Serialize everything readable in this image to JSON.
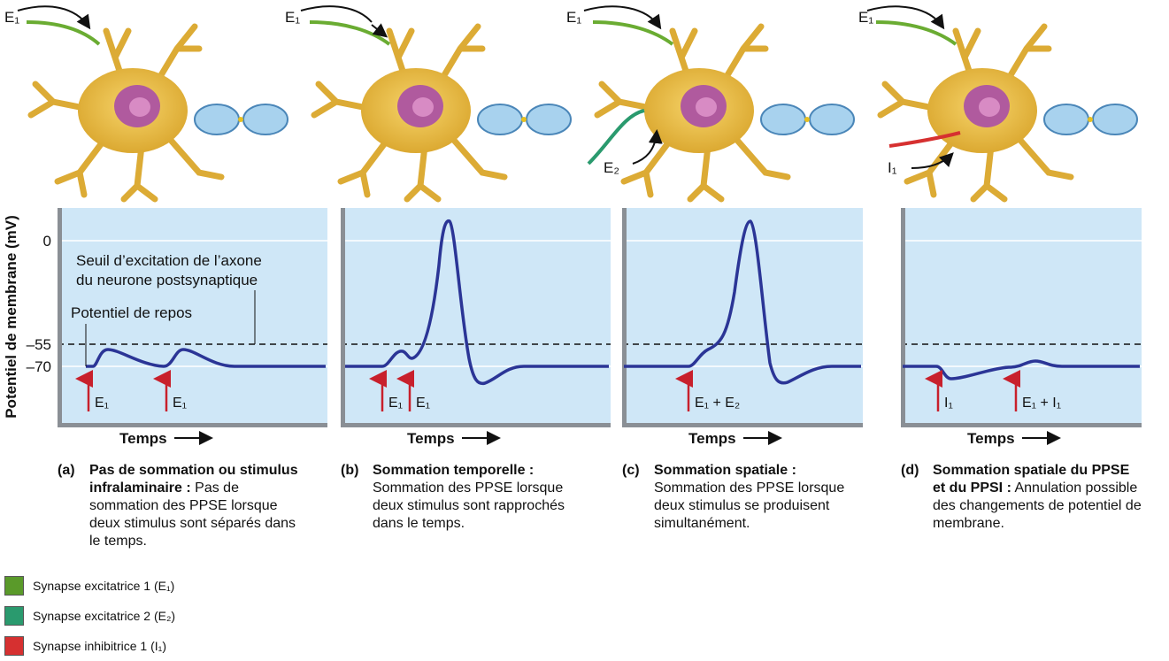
{
  "y_axis_label": "Potentiel de membrane (mV)",
  "y_ticks": [
    "0",
    "–55",
    "–70"
  ],
  "threshold_label": [
    "Seuil d’excitation de l’axone",
    "du neurone postsynaptique"
  ],
  "resting_label": "Potentiel de repos",
  "panels": [
    {
      "input_labels": [
        "E₁"
      ],
      "arrow_labels": [
        "E₁",
        "E₁"
      ],
      "x_label": "Temps",
      "caption": {
        "letter": "(a)",
        "title": "Pas de sommation ou stimulus infralaminaire :",
        "text": "Pas de sommation des PPSE lorsque deux stimulus sont séparés dans le temps."
      }
    },
    {
      "input_labels": [
        "E₁"
      ],
      "arrow_labels": [
        "E₁",
        "E₁"
      ],
      "x_label": "Temps",
      "caption": {
        "letter": "(b)",
        "title": "Sommation temporelle :",
        "text": "Sommation des PPSE lorsque deux stimulus sont rapprochés dans le temps."
      }
    },
    {
      "input_labels": [
        "E₁",
        "E₂"
      ],
      "arrow_labels": [
        "E₁ + E₂"
      ],
      "x_label": "Temps",
      "caption": {
        "letter": "(c)",
        "title": "Sommation spatiale :",
        "text": "Sommation des PPSE lorsque deux stimulus se produisent simultanément."
      }
    },
    {
      "input_labels": [
        "E₁",
        "I₁"
      ],
      "arrow_labels": [
        "I₁",
        "E₁ + I₁"
      ],
      "x_label": "Temps",
      "caption": {
        "letter": "(d)",
        "title": "Sommation spatiale du PPSE et du PPSI :",
        "text": "Annulation possible des changements de potentiel de membrane."
      }
    }
  ],
  "legend": [
    {
      "label": "Synapse excitatrice 1 (E₁)",
      "color": "#5a9a2a"
    },
    {
      "label": "Synapse excitatrice 2 (E₂)",
      "color": "#2a9a6e"
    },
    {
      "label": "Synapse inhibitrice 1 (I₁)",
      "color": "#d63030"
    }
  ]
}
